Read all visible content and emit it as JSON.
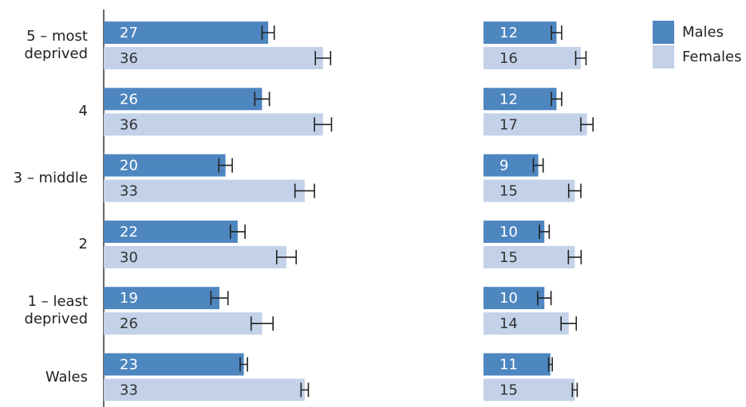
{
  "chart_data": [
    {
      "type": "hbar",
      "categories": [
        "5 – most deprived",
        "4",
        "3 – middle",
        "2",
        "1 – least deprived",
        "Wales"
      ],
      "xlim": [
        0,
        60
      ],
      "legend": "top-right",
      "series": [
        {
          "name": "Males",
          "color": "#4e86c0",
          "values": [
            27,
            26,
            20,
            22,
            19,
            23
          ],
          "errors": [
            1.0,
            1.2,
            1.1,
            1.2,
            1.4,
            0.6
          ]
        },
        {
          "name": "Females",
          "color": "#c3d2e9",
          "values": [
            36,
            36,
            33,
            30,
            26,
            33
          ],
          "errors": [
            1.25,
            1.4,
            1.6,
            1.6,
            1.8,
            0.6
          ]
        }
      ]
    },
    {
      "type": "hbar",
      "xlim": [
        0,
        40
      ],
      "series": [
        {
          "color": "#4e86c0",
          "values": [
            12,
            12,
            9,
            10,
            10,
            11
          ],
          "errors": [
            0.85,
            0.85,
            0.8,
            0.8,
            1.1,
            0.3
          ]
        },
        {
          "color": "#c3d2e9",
          "values": [
            16,
            17,
            15,
            15,
            14,
            15
          ],
          "errors": [
            0.85,
            1.0,
            1.0,
            1.05,
            1.25,
            0.4
          ]
        }
      ]
    }
  ]
}
